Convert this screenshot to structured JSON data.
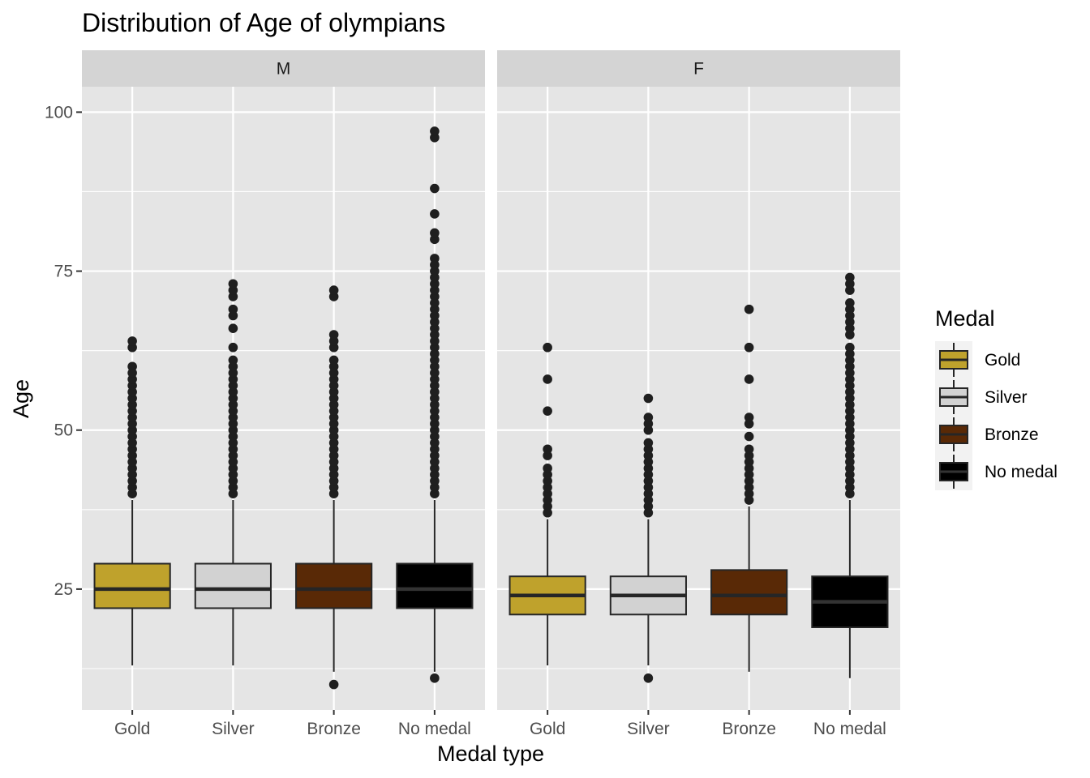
{
  "chart_data": {
    "type": "boxplot",
    "title": "Distribution of Age of olympians",
    "xlabel": "Medal type",
    "ylabel": "Age",
    "categories": [
      "Gold",
      "Silver",
      "Bronze",
      "No medal"
    ],
    "y_ticks": [
      25,
      50,
      75,
      100
    ],
    "ylim": [
      6,
      104
    ],
    "grid": true,
    "legend": {
      "title": "Medal",
      "position": "right",
      "items": [
        "Gold",
        "Silver",
        "Bronze",
        "No medal"
      ]
    },
    "colors": {
      "Gold": "#bfa22c",
      "Silver": "#d2d2d2",
      "Bronze": "#592906",
      "No medal": "#000000",
      "panel_bg": "#e5e5e5",
      "strip_bg": "#d4d4d4",
      "grid": "#ffffff",
      "outline": "#262626",
      "median_dark_box": "#333333"
    },
    "panels": [
      {
        "label": "M",
        "boxes": [
          {
            "category": "Gold",
            "min": 13,
            "q1": 22,
            "median": 25,
            "q3": 29,
            "max": 39,
            "outliers": [
              40,
              41,
              42,
              43,
              44,
              45,
              46,
              47,
              48,
              49,
              50,
              51,
              52,
              53,
              54,
              55,
              56,
              57,
              58,
              59,
              60,
              63,
              64
            ]
          },
          {
            "category": "Silver",
            "min": 13,
            "q1": 22,
            "median": 25,
            "q3": 29,
            "max": 39,
            "outliers": [
              40,
              41,
              42,
              43,
              44,
              45,
              46,
              47,
              48,
              49,
              50,
              51,
              52,
              53,
              54,
              55,
              56,
              57,
              58,
              59,
              60,
              61,
              63,
              66,
              68,
              69,
              71,
              72,
              73
            ]
          },
          {
            "category": "Bronze",
            "min": 12,
            "q1": 22,
            "median": 25,
            "q3": 29,
            "max": 39,
            "outliers": [
              10,
              40,
              41,
              42,
              43,
              44,
              45,
              46,
              47,
              48,
              49,
              50,
              51,
              52,
              53,
              54,
              55,
              56,
              57,
              58,
              59,
              60,
              61,
              63,
              64,
              65,
              71,
              72
            ]
          },
          {
            "category": "No medal",
            "min": 12,
            "q1": 22,
            "median": 25,
            "q3": 29,
            "max": 39,
            "outliers": [
              11,
              40,
              41,
              42,
              43,
              44,
              45,
              46,
              47,
              48,
              49,
              50,
              51,
              52,
              53,
              54,
              55,
              56,
              57,
              58,
              59,
              60,
              61,
              62,
              63,
              64,
              65,
              66,
              67,
              68,
              69,
              70,
              71,
              72,
              73,
              74,
              75,
              76,
              77,
              80,
              81,
              84,
              88,
              96,
              97
            ]
          }
        ]
      },
      {
        "label": "F",
        "boxes": [
          {
            "category": "Gold",
            "min": 13,
            "q1": 21,
            "median": 24,
            "q3": 27,
            "max": 36,
            "outliers": [
              37,
              38,
              39,
              40,
              41,
              42,
              43,
              44,
              46,
              47,
              53,
              58,
              63
            ]
          },
          {
            "category": "Silver",
            "min": 13,
            "q1": 21,
            "median": 24,
            "q3": 27,
            "max": 36,
            "outliers": [
              11,
              37,
              38,
              39,
              40,
              41,
              42,
              43,
              44,
              45,
              46,
              47,
              48,
              50,
              51,
              52,
              55
            ]
          },
          {
            "category": "Bronze",
            "min": 12,
            "q1": 21,
            "median": 24,
            "q3": 28,
            "max": 38,
            "outliers": [
              39,
              40,
              41,
              42,
              43,
              44,
              45,
              46,
              47,
              49,
              51,
              52,
              58,
              63,
              69
            ]
          },
          {
            "category": "No medal",
            "min": 11,
            "q1": 19,
            "median": 23,
            "q3": 27,
            "max": 39,
            "outliers": [
              40,
              41,
              42,
              43,
              44,
              45,
              46,
              47,
              48,
              49,
              50,
              51,
              52,
              53,
              54,
              55,
              56,
              57,
              58,
              59,
              60,
              61,
              62,
              63,
              65,
              66,
              67,
              68,
              69,
              70,
              72,
              73,
              74
            ]
          }
        ]
      }
    ]
  }
}
